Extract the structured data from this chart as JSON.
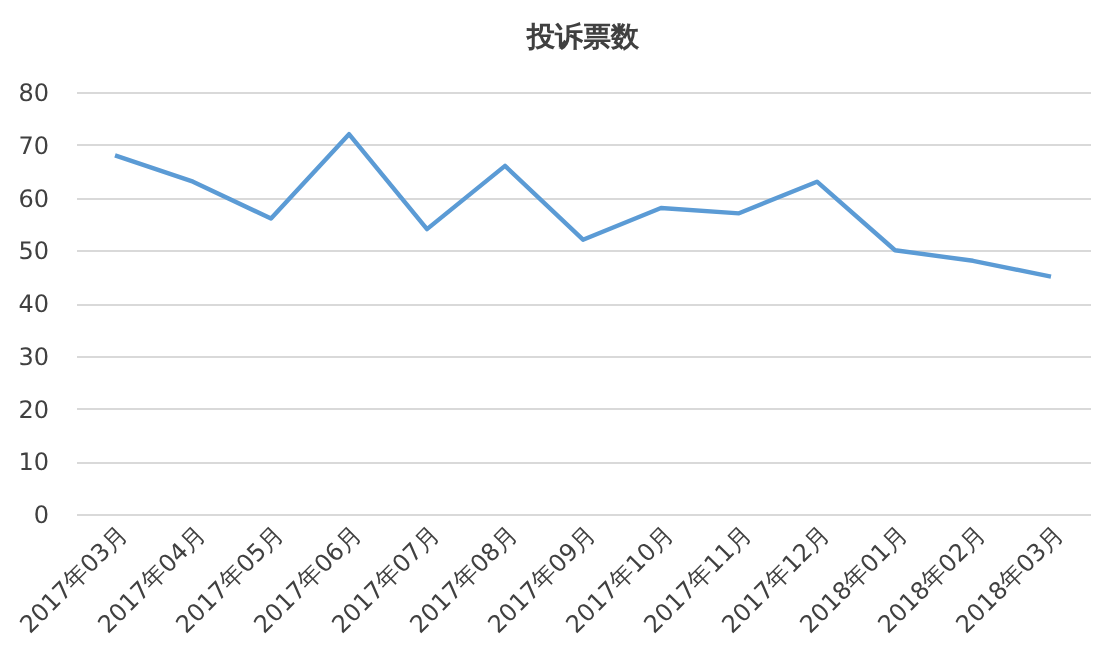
{
  "chart_data": {
    "type": "line",
    "title": "投诉票数",
    "categories": [
      "2017年03月",
      "2017年04月",
      "2017年05月",
      "2017年06月",
      "2017年07月",
      "2017年08月",
      "2017年09月",
      "2017年10月",
      "2017年11月",
      "2017年12月",
      "2018年01月",
      "2018年02月",
      "2018年03月"
    ],
    "series": [
      {
        "color": "#5b9bd5",
        "values": [
          68,
          63,
          56,
          72,
          54,
          66,
          52,
          58,
          57,
          63,
          50,
          48,
          45
        ]
      }
    ],
    "ylim": [
      0,
      80
    ],
    "yticks": [
      0,
      10,
      20,
      30,
      40,
      50,
      60,
      70,
      80
    ],
    "grid": "y",
    "marker": "none",
    "line_style": "solid"
  }
}
